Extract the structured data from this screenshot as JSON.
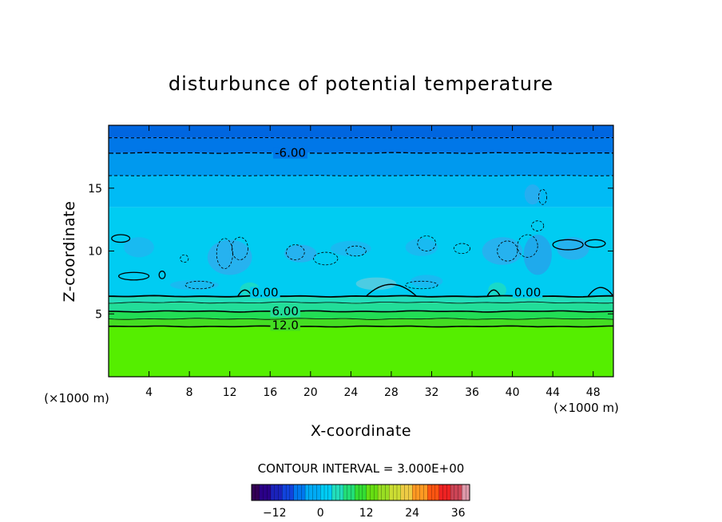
{
  "chart_data": {
    "type": "heatmap",
    "title": "disturbunce of potential temperature",
    "xlabel": "X-coordinate",
    "ylabel": "Z-coordinate",
    "x_unit": "(×1000 m)",
    "y_unit": "(×1000 m)",
    "xlim": [
      0,
      50
    ],
    "ylim": [
      0,
      20
    ],
    "x_ticks": [
      4,
      8,
      12,
      16,
      20,
      24,
      28,
      32,
      36,
      40,
      44,
      48
    ],
    "y_ticks": [
      5,
      10,
      15
    ],
    "contour_interval_text": "CONTOUR INTERVAL = 3.000E+00",
    "contour_interval": 3.0,
    "contour_labels": [
      {
        "text": "-6.00",
        "x": 18,
        "z": 17.8
      },
      {
        "text": "0.00",
        "x": 15.5,
        "z": 6.7
      },
      {
        "text": "0.00",
        "x": 41.5,
        "z": 6.7
      },
      {
        "text": "6.00",
        "x": 17.5,
        "z": 5.2
      },
      {
        "text": "12.0",
        "x": 17.5,
        "z": 4.1
      }
    ],
    "field_bands": [
      {
        "z0": 0,
        "z1": 4.0,
        "value": 15,
        "color": "#55ee00"
      },
      {
        "z0": 4.0,
        "z1": 4.6,
        "value": 13,
        "color": "#44dd22"
      },
      {
        "z0": 4.6,
        "z1": 5.2,
        "value": 10,
        "color": "#22dd55"
      },
      {
        "z0": 5.2,
        "z1": 5.9,
        "value": 6,
        "color": "#22dd99"
      },
      {
        "z0": 5.9,
        "z1": 6.4,
        "value": 3,
        "color": "#22ddbb"
      },
      {
        "z0": 6.4,
        "z1": 13.5,
        "value": -1,
        "color": "#00ccf2"
      },
      {
        "z0": 13.5,
        "z1": 16.0,
        "value": -3,
        "color": "#00bbf5"
      },
      {
        "z0": 16.0,
        "z1": 17.8,
        "value": -5,
        "color": "#0099ee"
      },
      {
        "z0": 17.8,
        "z1": 19.0,
        "value": -7,
        "color": "#0077e8"
      },
      {
        "z0": 19.0,
        "z1": 20.0,
        "value": -8,
        "color": "#0066e0"
      }
    ],
    "colorbar": {
      "min": -18,
      "max": 39,
      "ticks": [
        -12,
        0,
        12,
        24,
        36
      ],
      "colors": [
        "#330055",
        "#2a0088",
        "#1a22bb",
        "#1144dd",
        "#0077ee",
        "#00aaf5",
        "#00ccf5",
        "#22ddbb",
        "#22dd77",
        "#33dd33",
        "#66dd11",
        "#99dd22",
        "#ccdd33",
        "#eecc44",
        "#ff9922",
        "#ff5511",
        "#ee2222",
        "#cc4455",
        "#dd99aa"
      ]
    }
  }
}
